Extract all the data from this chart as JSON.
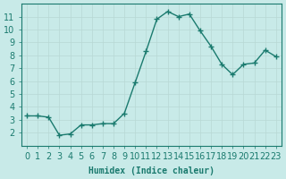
{
  "x": [
    0,
    1,
    2,
    3,
    4,
    5,
    6,
    7,
    8,
    9,
    10,
    11,
    12,
    13,
    14,
    15,
    16,
    17,
    18,
    19,
    20,
    21,
    22,
    23
  ],
  "y": [
    3.3,
    3.3,
    3.2,
    1.8,
    1.9,
    2.6,
    2.6,
    2.7,
    2.7,
    3.5,
    5.9,
    8.3,
    10.8,
    11.4,
    11.0,
    11.2,
    9.9,
    8.7,
    7.3,
    6.5,
    7.3,
    7.4,
    8.4,
    7.9
  ],
  "line_color": "#1a7a6e",
  "marker": "+",
  "marker_size": 4,
  "background_color": "#c8eae8",
  "grid_color": "#b8d8d4",
  "xlabel": "Humidex (Indice chaleur)",
  "xlim": [
    -0.5,
    23.5
  ],
  "ylim": [
    1.0,
    12.0
  ],
  "yticks": [
    2,
    3,
    4,
    5,
    6,
    7,
    8,
    9,
    10,
    11
  ],
  "xticks": [
    0,
    1,
    2,
    3,
    4,
    5,
    6,
    7,
    8,
    9,
    10,
    11,
    12,
    13,
    14,
    15,
    16,
    17,
    18,
    19,
    20,
    21,
    22,
    23
  ],
  "tick_color": "#1a7a6e",
  "label_color": "#1a7a6e",
  "font_size": 7
}
